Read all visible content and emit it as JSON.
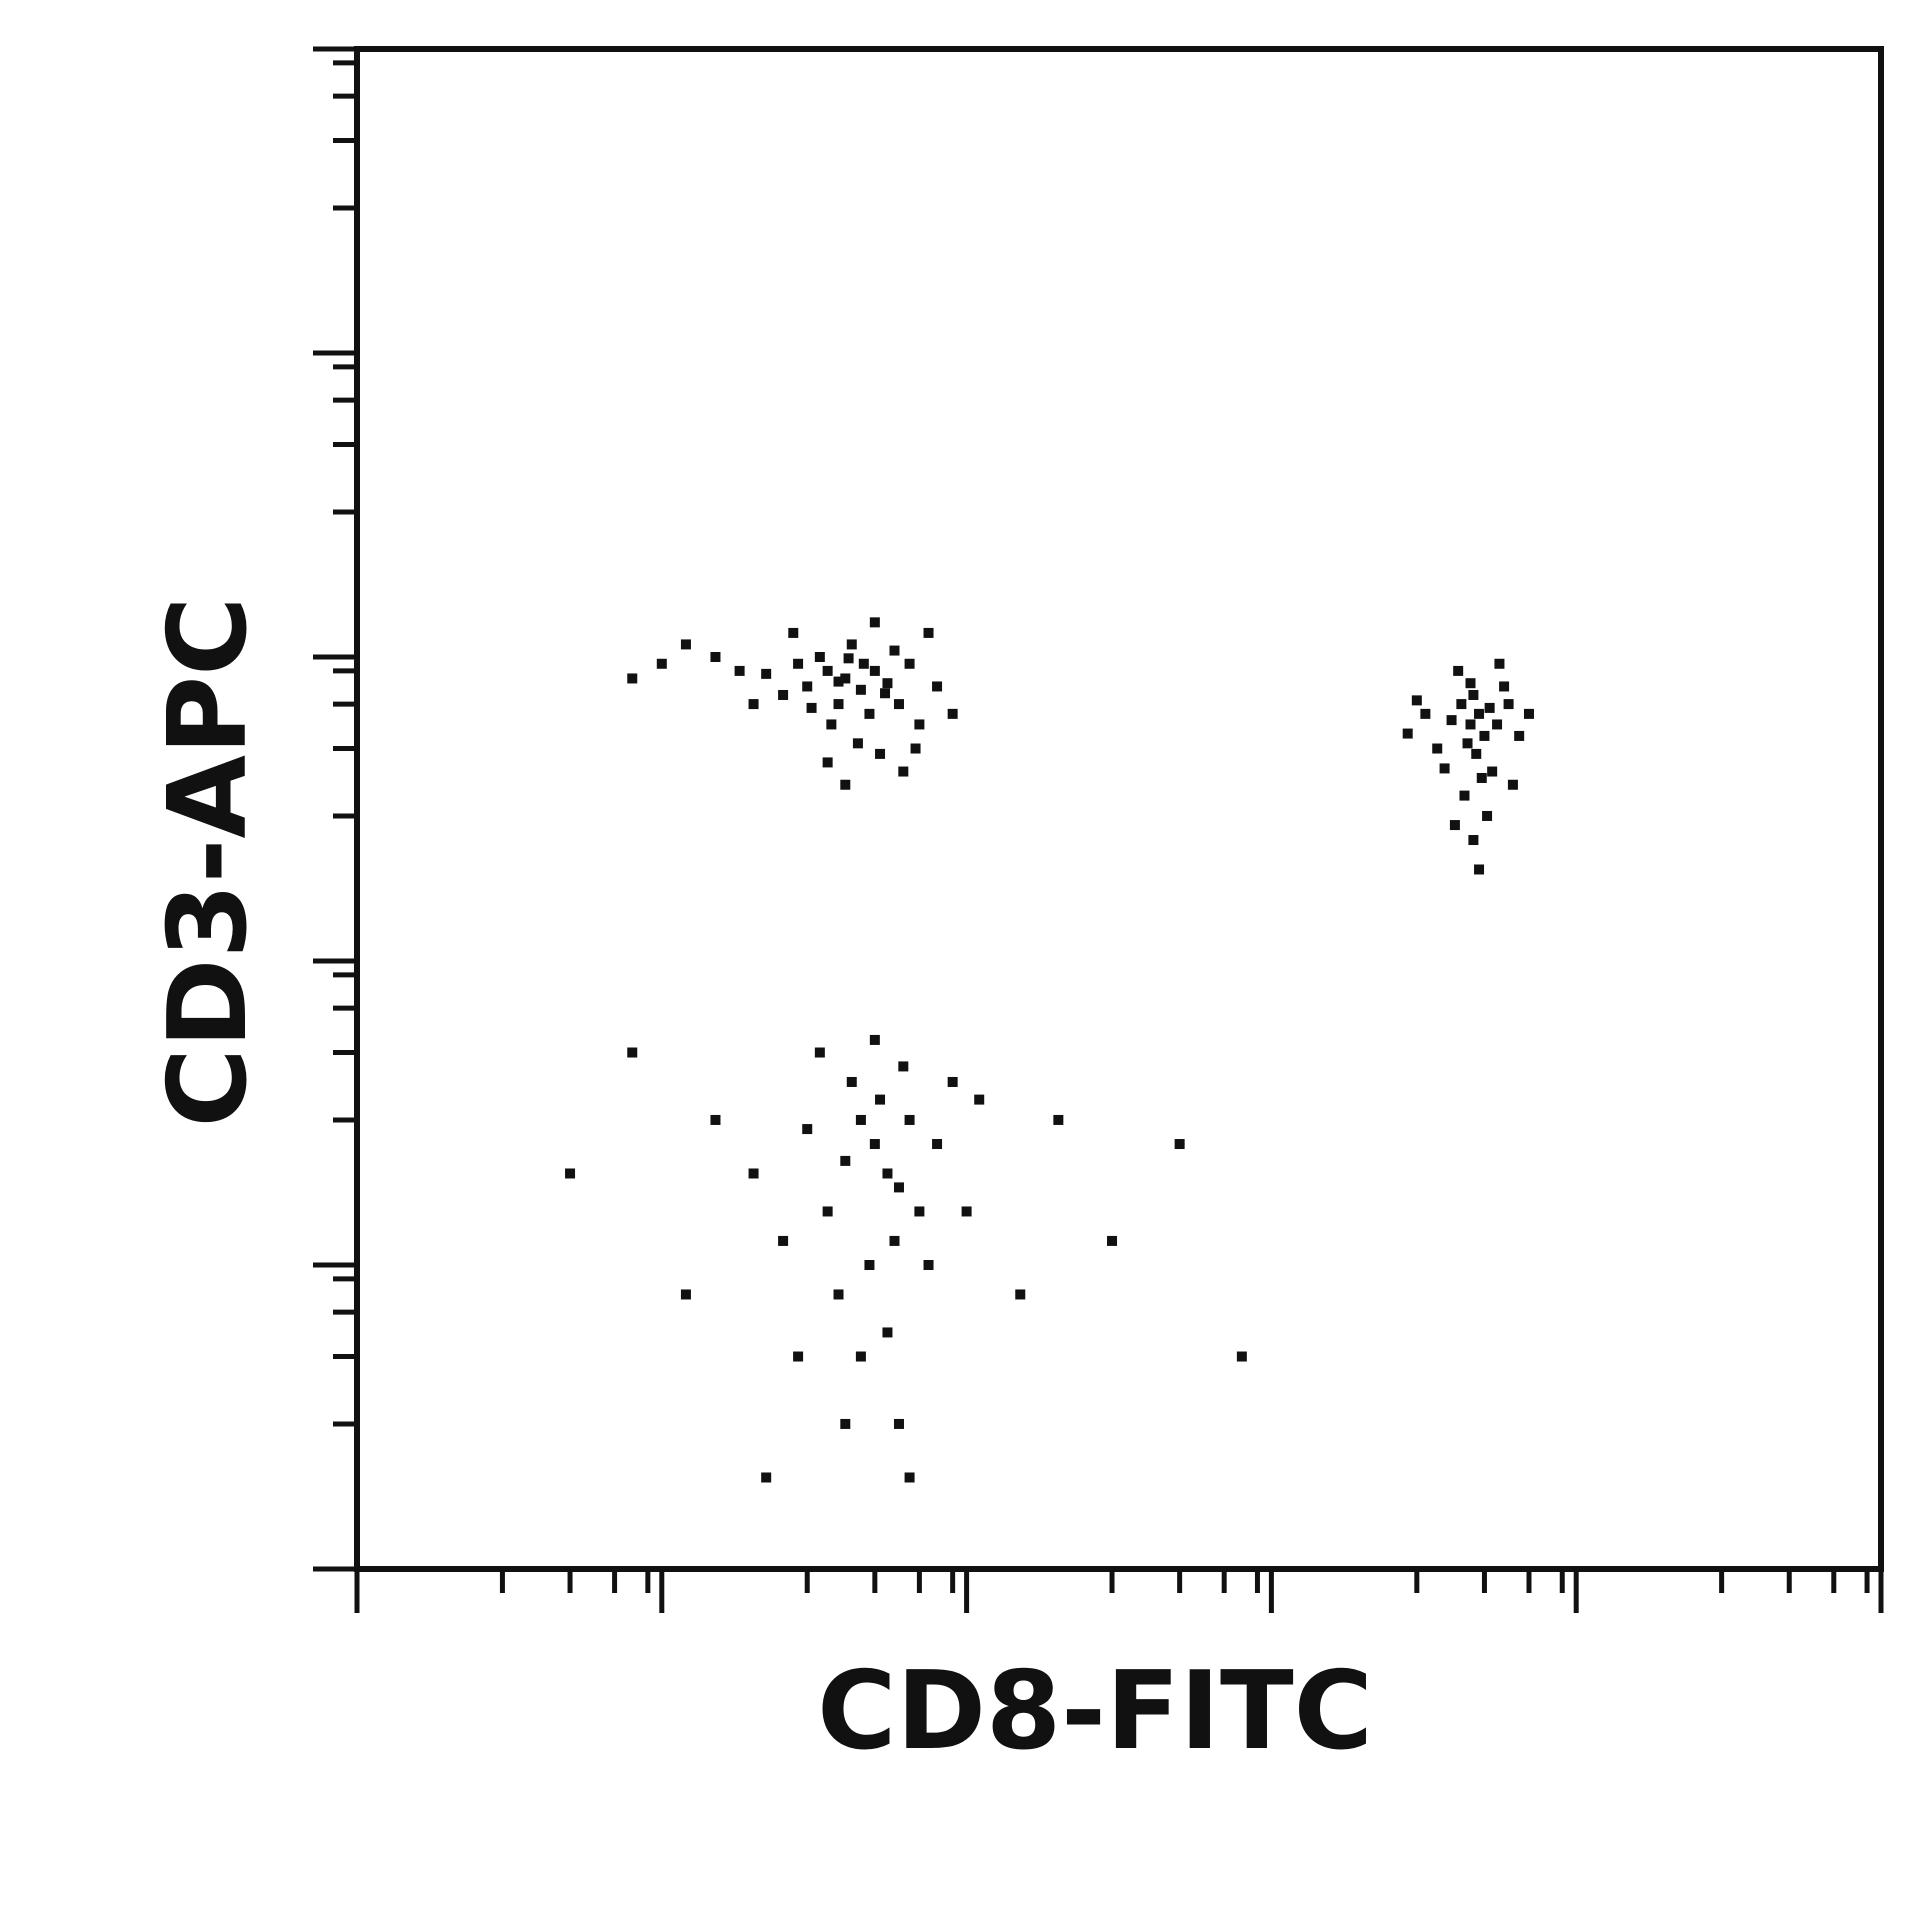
{
  "chart_data": {
    "type": "scatter",
    "x_label": "CD8-FITC",
    "y_label": "CD3-APC",
    "xscale": "log",
    "yscale": "log",
    "color": "#111111",
    "xlim": [
      1,
      100000
    ],
    "ylim": [
      1,
      100000
    ],
    "xticks": [
      1,
      10,
      100,
      1000,
      10000,
      100000
    ],
    "yticks": [
      1,
      10,
      100,
      1000,
      10000,
      100000
    ],
    "xminorticks": [
      3,
      5,
      7,
      9,
      30,
      50,
      70,
      90,
      300,
      500,
      700,
      900,
      3000,
      5000,
      7000,
      9000,
      30000,
      50000,
      70000,
      90000
    ],
    "yminorticks": [
      3,
      5,
      7,
      9,
      30,
      50,
      70,
      90,
      300,
      500,
      700,
      900,
      3000,
      5000,
      7000,
      9000,
      30000,
      50000,
      70000,
      90000
    ],
    "x": [
      30,
      35,
      40,
      45,
      50,
      38,
      28,
      33,
      42,
      55,
      60,
      48,
      36,
      25,
      22,
      65,
      58,
      44,
      52,
      70,
      18,
      15,
      12,
      10,
      80,
      62,
      40,
      75,
      27,
      90,
      8,
      50,
      35,
      68,
      20,
      46,
      31,
      54,
      41,
      38,
      4500,
      4800,
      4200,
      5000,
      4600,
      5200,
      3900,
      4400,
      5500,
      4700,
      3500,
      6000,
      5800,
      4100,
      3200,
      4900,
      4300,
      5300,
      6500,
      3000,
      4000,
      5100,
      4600,
      7000,
      3700,
      5600,
      2800,
      4800,
      6200,
      4500,
      50,
      55,
      45,
      60,
      52,
      40,
      35,
      58,
      48,
      42,
      30,
      65,
      70,
      38,
      55,
      45,
      25,
      62,
      50,
      33,
      20,
      80,
      75,
      28,
      60,
      40,
      15,
      90,
      12,
      100,
      110,
      8,
      5,
      150,
      200,
      300,
      500,
      800,
      22,
      65
    ],
    "values": [
      800,
      900,
      850,
      780,
      900,
      700,
      950,
      1000,
      1100,
      820,
      700,
      650,
      600,
      750,
      880,
      950,
      1050,
      520,
      480,
      600,
      900,
      1000,
      1100,
      950,
      800,
      420,
      380,
      1200,
      1200,
      650,
      850,
      1300,
      450,
      500,
      700,
      950,
      680,
      760,
      990,
      830,
      600,
      650,
      700,
      550,
      750,
      680,
      620,
      520,
      600,
      480,
      500,
      700,
      800,
      900,
      650,
      400,
      350,
      420,
      550,
      720,
      280,
      300,
      250,
      650,
      430,
      950,
      560,
      200,
      380,
      820,
      25,
      20,
      30,
      18,
      35,
      22,
      15,
      12,
      10,
      40,
      28,
      30,
      15,
      8,
      6,
      5,
      12,
      45,
      55,
      50,
      20,
      25,
      10,
      5,
      3,
      3,
      30,
      40,
      8,
      15,
      35,
      50,
      20,
      8,
      30,
      12,
      25,
      5,
      2,
      2
    ]
  }
}
